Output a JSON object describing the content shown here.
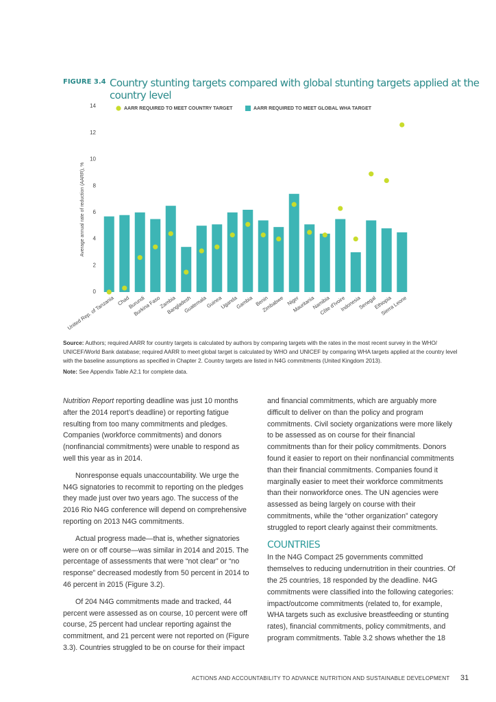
{
  "document": {
    "figure_label": "FIGURE 3.4",
    "source_label": "Source:",
    "source_text": "Authors; required AARR for country targets is calculated by authors by comparing targets with the rates in the most recent survey in the WHO/ UNICEF/World Bank database; required AARR to meet global target is calculated by WHO and UNICEF by comparing WHA targets applied at the country level with the baseline assumptions as specified in Chapter 2. Country targets are listed in N4G commitments (United Kingdom 2013).",
    "note_label": "Note:",
    "note_text": "See Appendix Table A2.1 for complete data.",
    "left_column": {
      "p1_italic": "Nutrition Report",
      "p1_rest": " reporting deadline was just 10 months after the 2014 report’s deadline) or reporting fatigue resulting from too many commitments and pledges. Companies (workforce commitments) and donors (nonfinancial commitments) were unable to respond as well this year as in 2014.",
      "p2": "Nonresponse equals unaccountability. We urge the N4G signatories to recommit to reporting on the pledges they made just over two years ago. The success of the 2016 Rio N4G conference will depend on comprehensive reporting on 2013 N4G commitments.",
      "p3": "Actual progress made—that is, whether signatories were on or off course—was similar in 2014 and 2015. The percentage of assessments that were “not clear” or “no response” decreased modestly from 50 percent in 2014 to 46 percent in 2015 (Figure 3.2).",
      "p4": "Of 204 N4G commitments made and tracked, 44 percent were assessed as on course, 10 percent were off course, 25 percent had unclear reporting against the commitment, and 21 percent were not reported on (Figure 3.3). Countries struggled to be on course for their impact"
    },
    "right_column": {
      "p1": "and financial commitments, which are arguably more difficult to deliver on than the policy and program commitments. Civil society organizations were more likely to be assessed as on course for their financial commitments than for their policy commitments. Donors found it easier to report on their nonfinancial commitments than their financial commitments. Companies found it marginally easier to meet their workforce commitments than their nonworkforce ones. The UN agencies were assessed as being largely on course with their commitments, while the “other organization” category struggled to report clearly against their commitments.",
      "heading": "COUNTRIES",
      "p2": "In the N4G Compact 25 governments committed themselves to reducing undernutrition in their countries. Of the 25 countries, 18 responded by the deadline. N4G commitments were classified into the following categories: impact/outcome commitments (related to, for example, WHA targets such as exclusive breastfeeding or stunting rates), financial commitments, policy commitments, and program commitments. Table 3.2 shows whether the 18"
    },
    "footer": {
      "text": "ACTIONS AND ACCOUNTABILITY TO ADVANCE NUTRITION AND SUSTAINABLE DEVELOPMENT",
      "page": "31"
    }
  },
  "chart_data": {
    "type": "bar",
    "title": "Country stunting targets compared with global stunting targets applied at the country level",
    "y_label": "Average annual rate of reduction (AARR), %",
    "categories": [
      "United Rep. of Tanzania",
      "Chad",
      "Burundi",
      "Burkina Faso",
      "Zambia",
      "Bangladesh",
      "Guatemala",
      "Guinea",
      "Uganda",
      "Gambia",
      "Benin",
      "Zimbabwe",
      "Niger",
      "Mauritania",
      "Namibia",
      "Côte d'Ivoire",
      "Indonesia",
      "Senegal",
      "Ethiopia",
      "Sierra Leone"
    ],
    "series": [
      {
        "name": "AARR REQUIRED TO MEET COUNTRY TARGET",
        "type": "scatter",
        "color": "#c9dc2c",
        "values": [
          0,
          0.3,
          2.6,
          3.4,
          4.4,
          1.5,
          3.1,
          3.4,
          4.3,
          5.1,
          4.3,
          4.0,
          6.6,
          4.5,
          4.3,
          6.3,
          4.0,
          8.9,
          8.4,
          12.6
        ]
      },
      {
        "name": "AARR REQUIRED TO MEET GLOBAL WHA TARGET",
        "type": "bar",
        "color": "#3db5b5",
        "values": [
          5.7,
          5.8,
          6.0,
          5.5,
          6.5,
          3.4,
          5.0,
          5.1,
          6.0,
          6.2,
          5.4,
          4.9,
          7.4,
          5.1,
          4.4,
          5.5,
          3.0,
          5.4,
          4.8,
          4.5
        ]
      }
    ],
    "ylim": [
      0,
      14
    ],
    "yticks": [
      0,
      2,
      4,
      6,
      8,
      10,
      12,
      14
    ],
    "grid": false
  }
}
